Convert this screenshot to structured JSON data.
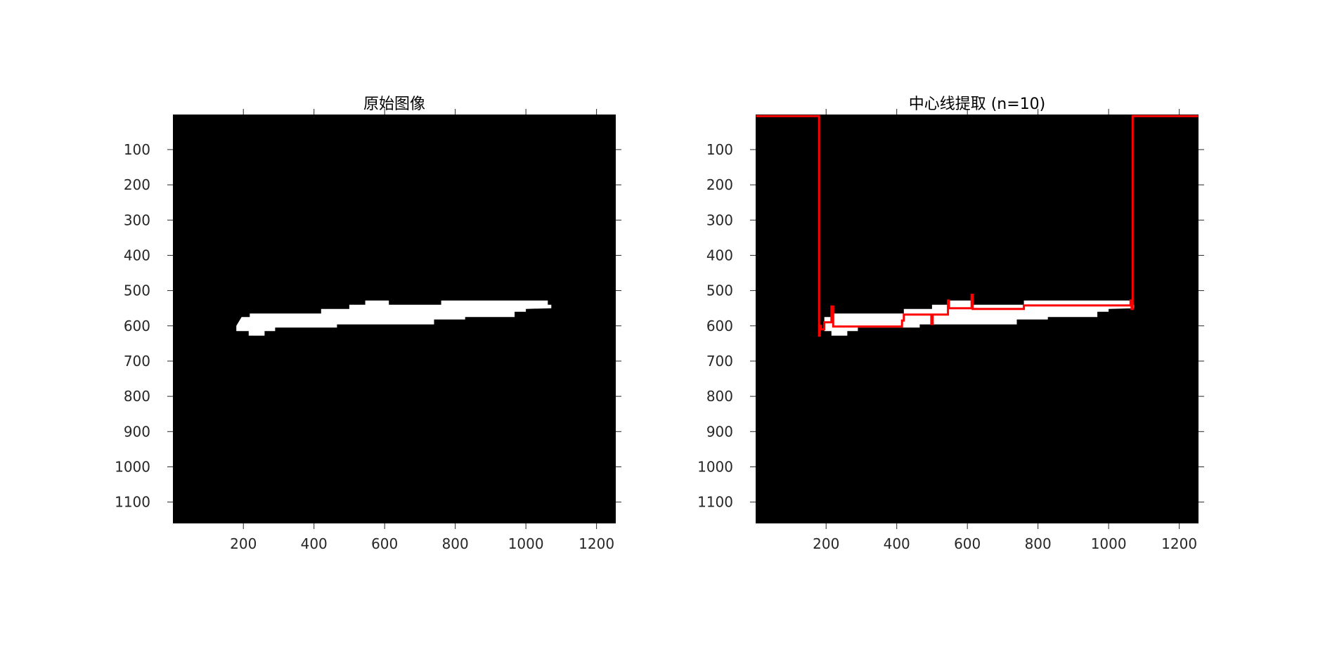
{
  "chart_data": [
    {
      "type": "image",
      "title": "原始图像",
      "xlabel": "",
      "ylabel": "",
      "xlim": [
        0.5,
        1254.5
      ],
      "ylim": [
        1160.5,
        0.5
      ],
      "y_reversed": true,
      "xticks": [
        200,
        400,
        600,
        800,
        1000,
        1200
      ],
      "yticks": [
        100,
        200,
        300,
        400,
        500,
        600,
        700,
        800,
        900,
        1000,
        1100
      ],
      "background_color": "#000000",
      "foreground_color": "#ffffff",
      "white_region": {
        "top_edge": [
          [
            180,
            600
          ],
          [
            180,
            600
          ],
          [
            195,
            575
          ],
          [
            218,
            575
          ],
          [
            218,
            565
          ],
          [
            420,
            565
          ],
          [
            420,
            552
          ],
          [
            500,
            552
          ],
          [
            500,
            540
          ],
          [
            545,
            540
          ],
          [
            545,
            528
          ],
          [
            612,
            528
          ],
          [
            612,
            540
          ],
          [
            760,
            540
          ],
          [
            760,
            528
          ],
          [
            1062,
            528
          ],
          [
            1062,
            540
          ],
          [
            1072,
            540
          ]
        ],
        "bottom_edge": [
          [
            1072,
            550
          ],
          [
            1000,
            552
          ],
          [
            1000,
            560
          ],
          [
            968,
            560
          ],
          [
            968,
            575
          ],
          [
            828,
            575
          ],
          [
            828,
            582
          ],
          [
            740,
            582
          ],
          [
            740,
            596
          ],
          [
            465,
            596
          ],
          [
            465,
            605
          ],
          [
            290,
            605
          ],
          [
            290,
            615
          ],
          [
            260,
            615
          ],
          [
            260,
            628
          ],
          [
            215,
            628
          ],
          [
            215,
            615
          ],
          [
            180,
            615
          ]
        ]
      }
    },
    {
      "type": "image",
      "title": "中心线提取 (n=10)",
      "xlabel": "",
      "ylabel": "",
      "xlim": [
        0.5,
        1254.5
      ],
      "ylim": [
        1160.5,
        0.5
      ],
      "y_reversed": true,
      "xticks": [
        200,
        400,
        600,
        800,
        1000,
        1200
      ],
      "yticks": [
        100,
        200,
        300,
        400,
        500,
        600,
        700,
        800,
        900,
        1000,
        1100
      ],
      "background_color": "#000000",
      "foreground_color": "#ffffff",
      "white_region": {
        "top_edge": [
          [
            195,
            590
          ],
          [
            195,
            575
          ],
          [
            218,
            575
          ],
          [
            218,
            565
          ],
          [
            420,
            565
          ],
          [
            420,
            552
          ],
          [
            500,
            552
          ],
          [
            500,
            540
          ],
          [
            545,
            540
          ],
          [
            545,
            528
          ],
          [
            612,
            528
          ],
          [
            612,
            540
          ],
          [
            760,
            540
          ],
          [
            760,
            528
          ],
          [
            1062,
            528
          ],
          [
            1062,
            540
          ],
          [
            1072,
            540
          ]
        ],
        "bottom_edge": [
          [
            1072,
            550
          ],
          [
            1000,
            552
          ],
          [
            1000,
            560
          ],
          [
            968,
            560
          ],
          [
            968,
            575
          ],
          [
            828,
            575
          ],
          [
            828,
            582
          ],
          [
            740,
            582
          ],
          [
            740,
            596
          ],
          [
            465,
            596
          ],
          [
            465,
            605
          ],
          [
            290,
            605
          ],
          [
            290,
            615
          ],
          [
            260,
            615
          ],
          [
            260,
            628
          ],
          [
            215,
            628
          ],
          [
            215,
            615
          ],
          [
            195,
            615
          ]
        ]
      },
      "series": [
        {
          "color": "#ff0000",
          "x": [
            1,
            180,
            180,
            182,
            182,
            185,
            185,
            195,
            195,
            200,
            200,
            215,
            215,
            220,
            220,
            415,
            415,
            420,
            420,
            498,
            498,
            502,
            502,
            545,
            545,
            548,
            548,
            612,
            612,
            615,
            615,
            760,
            760,
            1062,
            1062,
            1065,
            1065,
            1068,
            1068,
            1254
          ],
          "y": [
            5,
            5,
            628,
            628,
            600,
            600,
            610,
            610,
            590,
            590,
            590,
            590,
            545,
            545,
            602,
            602,
            585,
            585,
            568,
            568,
            595,
            595,
            568,
            568,
            528,
            528,
            550,
            550,
            512,
            512,
            552,
            552,
            542,
            542,
            528,
            528,
            552,
            552,
            5,
            5
          ]
        }
      ]
    }
  ]
}
